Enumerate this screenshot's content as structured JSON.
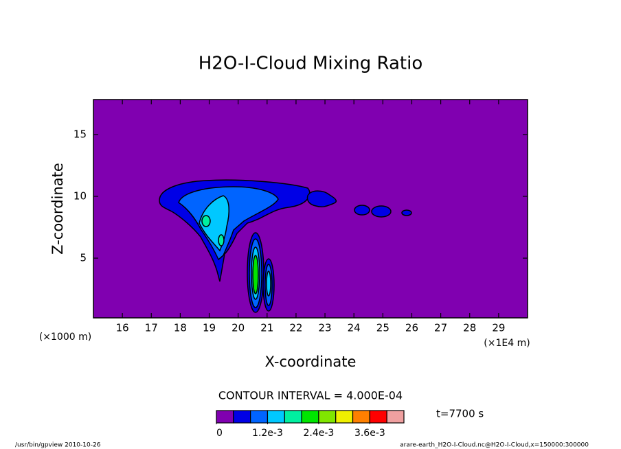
{
  "chart_data": {
    "type": "contour",
    "title": "H2O-I-Cloud Mixing Ratio",
    "x_label": "X-coordinate",
    "y_label": "Z-coordinate",
    "x_unit_note": "(×1E4 m)",
    "y_unit_note": "(×1000 m)",
    "xlim": [
      15,
      30
    ],
    "ylim": [
      0.17,
      17.83
    ],
    "xticks": [
      16,
      17,
      18,
      19,
      20,
      21,
      22,
      23,
      24,
      25,
      26,
      27,
      28,
      29
    ],
    "yticks": [
      5,
      10,
      15
    ],
    "contour_interval": "CONTOUR INTERVAL = 4.000E-04",
    "time_note": "t=7700 s",
    "colorbar": {
      "colors": [
        "#8000b0",
        "#0000e6",
        "#0064ff",
        "#00c8ff",
        "#00f0a0",
        "#00e600",
        "#80e600",
        "#f0f000",
        "#ff8000",
        "#ff0000",
        "#f0a0a0"
      ],
      "lim": [
        0,
        0.0044
      ],
      "ticks": [
        0,
        {
          "value": 0.0012,
          "label": "1.2e-3"
        },
        {
          "value": 0.0024,
          "label": "2.4e-3"
        },
        {
          "value": 0.0036,
          "label": "3.6e-3"
        }
      ]
    },
    "footer_left": "/usr/bin/gpview  2010-10-26",
    "footer_right": "arare-earth_H2O-I-Cloud.nc@H2O-I-Cloud,x=150000:300000"
  }
}
